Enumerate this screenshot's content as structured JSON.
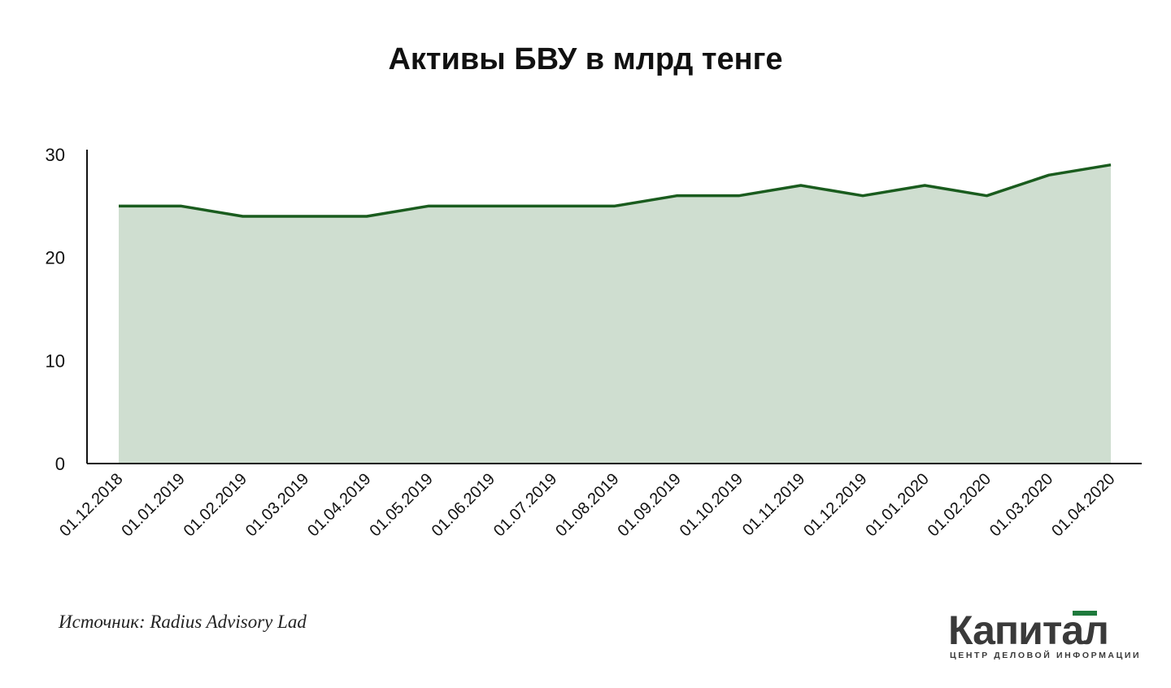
{
  "chart_data": {
    "type": "area",
    "title": "Активы БВУ в млрд тенге",
    "xlabel": "",
    "ylabel": "",
    "categories": [
      "01.12.2018",
      "01.01.2019",
      "01.02.2019",
      "01.03.2019",
      "01.04.2019",
      "01.05.2019",
      "01.06.2019",
      "01.07.2019",
      "01.08.2019",
      "01.09.2019",
      "01.10.2019",
      "01.11.2019",
      "01.12.2019",
      "01.01.2020",
      "01.02.2020",
      "01.03.2020",
      "01.04.2020"
    ],
    "values": [
      25,
      25,
      24,
      24,
      24,
      25,
      25,
      25,
      25,
      26,
      26,
      27,
      26,
      27,
      26,
      28,
      29
    ],
    "ylim": [
      0,
      30
    ],
    "yticks": [
      "0",
      "10",
      "20",
      "30"
    ],
    "grid": false,
    "legend": "none",
    "colors": {
      "line": "#1a5c1e",
      "fill": "#cfded0",
      "axis": "#111111"
    }
  },
  "source": "Источник: Radius Advisory Lad",
  "logo": {
    "name": "Капитал",
    "tagline": "ЦЕНТР ДЕЛОВОЙ ИНФОРМАЦИИ"
  }
}
